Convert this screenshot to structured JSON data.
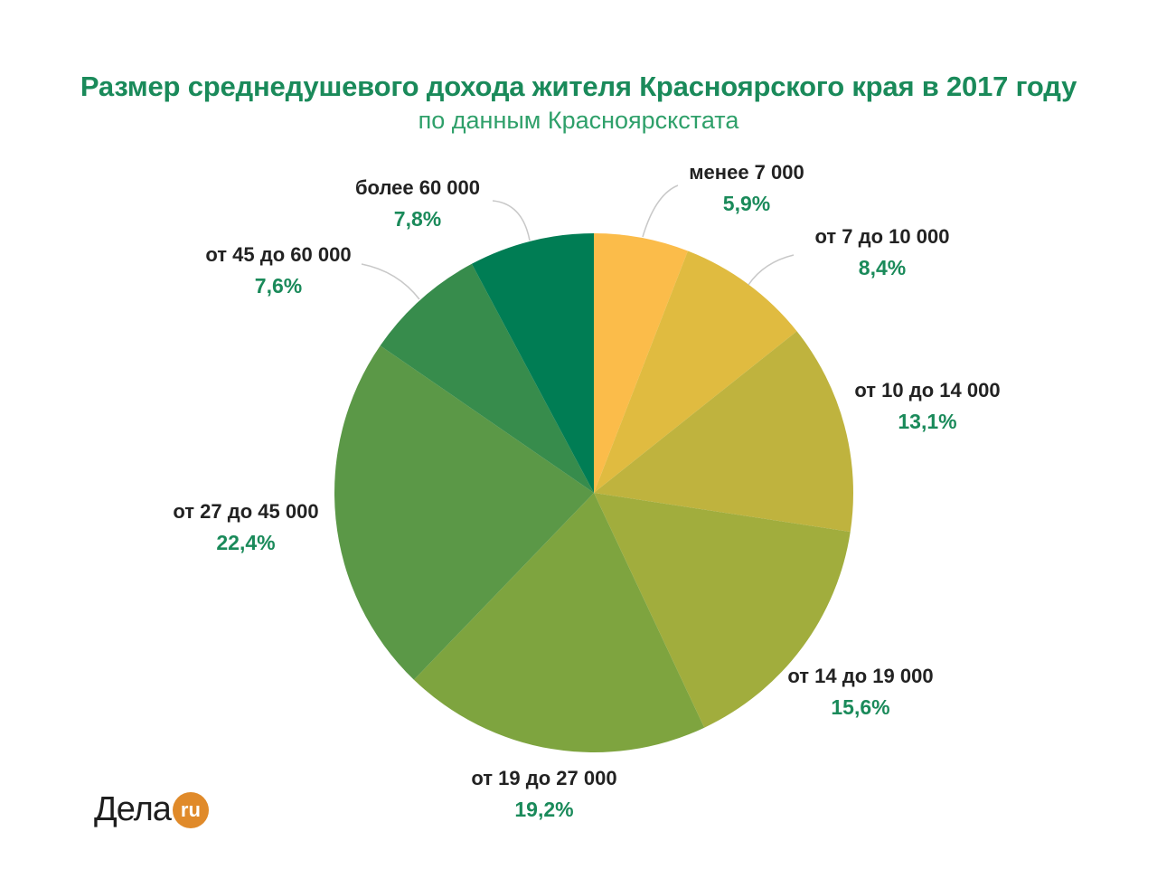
{
  "chart_data": {
    "type": "pie",
    "title": "Размер среднедушевого дохода жителя Красноярского края в 2017 году",
    "subtitle": "по данным Красноярскстата",
    "categories": [
      "менее 7 000",
      "от 7 до 10 000",
      "от 10 до 14 000",
      "от 14 до 19 000",
      "от 19 до 27 000",
      "от 27 до 45 000",
      "от 45 до 60 000",
      "более 60 000"
    ],
    "values": [
      5.9,
      8.4,
      13.1,
      15.6,
      19.2,
      22.4,
      7.6,
      7.8
    ],
    "value_labels": [
      "5,9%",
      "8,4%",
      "13,1%",
      "15,6%",
      "19,2%",
      "22,4%",
      "7,6%",
      "7,8%"
    ],
    "colors": [
      "#fbbc4a",
      "#e0bb40",
      "#bfb33e",
      "#a1ad3d",
      "#7ea43f",
      "#5b9847",
      "#378c4c",
      "#007d54"
    ],
    "start": "12 o'clock, clockwise",
    "legend": "none"
  },
  "logo": {
    "text": "Дела",
    "badge": "ru"
  }
}
